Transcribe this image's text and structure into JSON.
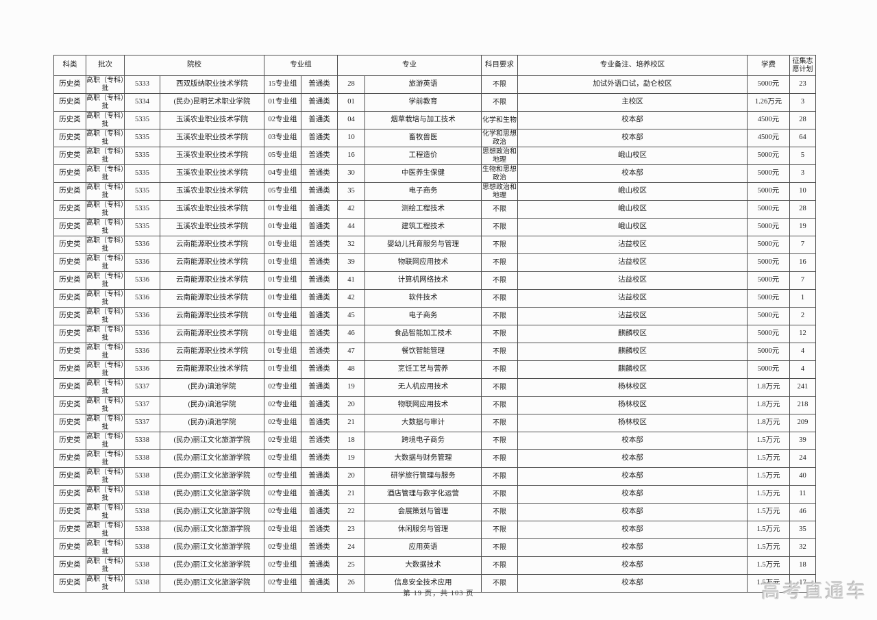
{
  "page": {
    "footer_text": "第 19 页，共 103 页",
    "watermark_text": "高考直通车",
    "border_color": "#4d4d4d",
    "watermark_color": "#d0d0d0",
    "background_color": "#fcfcfc"
  },
  "table": {
    "header": {
      "category": "科类",
      "batch": "批次",
      "college": "院校",
      "major_group": "专业组",
      "major": "专业",
      "subject_req": "科目要求",
      "remark": "专业备注、培养校区",
      "tuition": "学费",
      "plan": "征集志愿计划"
    },
    "columns": [
      "category",
      "batch",
      "college_code",
      "college_name",
      "group",
      "class_type",
      "major_code",
      "major_name",
      "subject_req",
      "remark",
      "tuition",
      "plan"
    ],
    "rows": [
      [
        "历史类",
        "高职（专科）批",
        "5333",
        "西双版纳职业技术学院",
        "15专业组",
        "普通类",
        "28",
        "旅游英语",
        "不限",
        "加试外语口试，勐仑校区",
        "5000元",
        "23"
      ],
      [
        "历史类",
        "高职（专科）批",
        "5334",
        "(民办)昆明艺术职业学院",
        "01专业组",
        "普通类",
        "01",
        "学前教育",
        "不限",
        "主校区",
        "1.26万元",
        "3"
      ],
      [
        "历史类",
        "高职（专科）批",
        "5335",
        "玉溪农业职业技术学院",
        "02专业组",
        "普通类",
        "04",
        "烟草栽培与加工技术",
        "化学和生物",
        "校本部",
        "4500元",
        "28"
      ],
      [
        "历史类",
        "高职（专科）批",
        "5335",
        "玉溪农业职业技术学院",
        "03专业组",
        "普通类",
        "10",
        "畜牧兽医",
        "化学和思想政治",
        "校本部",
        "4500元",
        "64"
      ],
      [
        "历史类",
        "高职（专科）批",
        "5335",
        "玉溪农业职业技术学院",
        "05专业组",
        "普通类",
        "16",
        "工程造价",
        "思想政治和地理",
        "峨山校区",
        "5000元",
        "5"
      ],
      [
        "历史类",
        "高职（专科）批",
        "5335",
        "玉溪农业职业技术学院",
        "04专业组",
        "普通类",
        "30",
        "中医养生保健",
        "生物和思想政治",
        "校本部",
        "5000元",
        "3"
      ],
      [
        "历史类",
        "高职（专科）批",
        "5335",
        "玉溪农业职业技术学院",
        "05专业组",
        "普通类",
        "35",
        "电子商务",
        "思想政治和地理",
        "峨山校区",
        "5000元",
        "10"
      ],
      [
        "历史类",
        "高职（专科）批",
        "5335",
        "玉溪农业职业技术学院",
        "01专业组",
        "普通类",
        "42",
        "测绘工程技术",
        "不限",
        "峨山校区",
        "5000元",
        "28"
      ],
      [
        "历史类",
        "高职（专科）批",
        "5335",
        "玉溪农业职业技术学院",
        "01专业组",
        "普通类",
        "44",
        "建筑工程技术",
        "不限",
        "峨山校区",
        "5000元",
        "19"
      ],
      [
        "历史类",
        "高职（专科）批",
        "5336",
        "云南能源职业技术学院",
        "01专业组",
        "普通类",
        "32",
        "婴幼儿托育服务与管理",
        "不限",
        "沾益校区",
        "5000元",
        "7"
      ],
      [
        "历史类",
        "高职（专科）批",
        "5336",
        "云南能源职业技术学院",
        "01专业组",
        "普通类",
        "39",
        "物联网应用技术",
        "不限",
        "沾益校区",
        "5000元",
        "16"
      ],
      [
        "历史类",
        "高职（专科）批",
        "5336",
        "云南能源职业技术学院",
        "01专业组",
        "普通类",
        "41",
        "计算机网络技术",
        "不限",
        "沾益校区",
        "5000元",
        "7"
      ],
      [
        "历史类",
        "高职（专科）批",
        "5336",
        "云南能源职业技术学院",
        "01专业组",
        "普通类",
        "42",
        "软件技术",
        "不限",
        "沾益校区",
        "5000元",
        "1"
      ],
      [
        "历史类",
        "高职（专科）批",
        "5336",
        "云南能源职业技术学院",
        "01专业组",
        "普通类",
        "45",
        "电子商务",
        "不限",
        "沾益校区",
        "5000元",
        "2"
      ],
      [
        "历史类",
        "高职（专科）批",
        "5336",
        "云南能源职业技术学院",
        "01专业组",
        "普通类",
        "46",
        "食品智能加工技术",
        "不限",
        "麒麟校区",
        "5000元",
        "12"
      ],
      [
        "历史类",
        "高职（专科）批",
        "5336",
        "云南能源职业技术学院",
        "01专业组",
        "普通类",
        "47",
        "餐饮智能管理",
        "不限",
        "麒麟校区",
        "5000元",
        "4"
      ],
      [
        "历史类",
        "高职（专科）批",
        "5336",
        "云南能源职业技术学院",
        "01专业组",
        "普通类",
        "48",
        "烹饪工艺与营养",
        "不限",
        "麒麟校区",
        "5000元",
        "4"
      ],
      [
        "历史类",
        "高职（专科）批",
        "5337",
        "(民办)滇池学院",
        "02专业组",
        "普通类",
        "19",
        "无人机应用技术",
        "不限",
        "杨林校区",
        "1.8万元",
        "241"
      ],
      [
        "历史类",
        "高职（专科）批",
        "5337",
        "(民办)滇池学院",
        "02专业组",
        "普通类",
        "20",
        "物联网应用技术",
        "不限",
        "杨林校区",
        "1.8万元",
        "218"
      ],
      [
        "历史类",
        "高职（专科）批",
        "5337",
        "(民办)滇池学院",
        "02专业组",
        "普通类",
        "21",
        "大数据与审计",
        "不限",
        "杨林校区",
        "1.8万元",
        "209"
      ],
      [
        "历史类",
        "高职（专科）批",
        "5338",
        "(民办)丽江文化旅游学院",
        "02专业组",
        "普通类",
        "18",
        "跨境电子商务",
        "不限",
        "校本部",
        "1.5万元",
        "39"
      ],
      [
        "历史类",
        "高职（专科）批",
        "5338",
        "(民办)丽江文化旅游学院",
        "02专业组",
        "普通类",
        "19",
        "大数据与财务管理",
        "不限",
        "校本部",
        "1.5万元",
        "24"
      ],
      [
        "历史类",
        "高职（专科）批",
        "5338",
        "(民办)丽江文化旅游学院",
        "02专业组",
        "普通类",
        "20",
        "研学旅行管理与服务",
        "不限",
        "校本部",
        "1.5万元",
        "40"
      ],
      [
        "历史类",
        "高职（专科）批",
        "5338",
        "(民办)丽江文化旅游学院",
        "02专业组",
        "普通类",
        "21",
        "酒店管理与数字化运营",
        "不限",
        "校本部",
        "1.5万元",
        "11"
      ],
      [
        "历史类",
        "高职（专科）批",
        "5338",
        "(民办)丽江文化旅游学院",
        "02专业组",
        "普通类",
        "22",
        "会展策划与管理",
        "不限",
        "校本部",
        "1.5万元",
        "46"
      ],
      [
        "历史类",
        "高职（专科）批",
        "5338",
        "(民办)丽江文化旅游学院",
        "02专业组",
        "普通类",
        "23",
        "休闲服务与管理",
        "不限",
        "校本部",
        "1.5万元",
        "35"
      ],
      [
        "历史类",
        "高职（专科）批",
        "5338",
        "(民办)丽江文化旅游学院",
        "02专业组",
        "普通类",
        "24",
        "应用英语",
        "不限",
        "校本部",
        "1.5万元",
        "32"
      ],
      [
        "历史类",
        "高职（专科）批",
        "5338",
        "(民办)丽江文化旅游学院",
        "02专业组",
        "普通类",
        "25",
        "大数据技术",
        "不限",
        "校本部",
        "1.5万元",
        "18"
      ],
      [
        "历史类",
        "高职（专科）批",
        "5338",
        "(民办)丽江文化旅游学院",
        "02专业组",
        "普通类",
        "26",
        "信息安全技术应用",
        "不限",
        "校本部",
        "1.5万元",
        "17"
      ]
    ]
  }
}
